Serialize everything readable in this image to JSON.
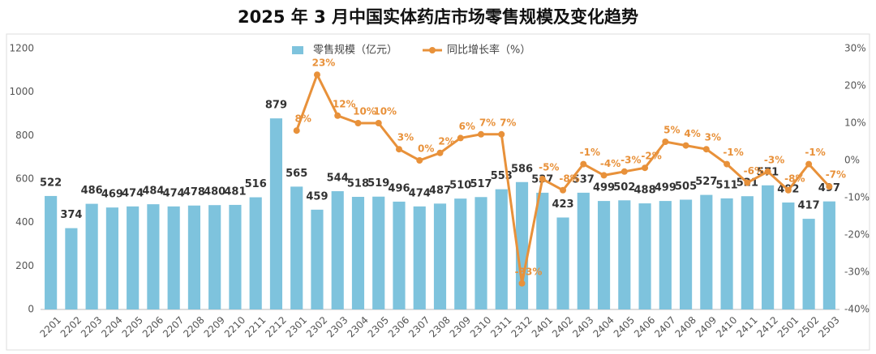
{
  "chart_data": {
    "type": "bar",
    "title": "2025 年 3 月中国实体药店市场零售规模及变化趋势",
    "categories": [
      "2201",
      "2202",
      "2203",
      "2204",
      "2205",
      "2206",
      "2207",
      "2208",
      "2209",
      "2210",
      "2211",
      "2212",
      "2301",
      "2302",
      "2303",
      "2304",
      "2305",
      "2306",
      "2307",
      "2308",
      "2309",
      "2310",
      "2311",
      "2312",
      "2401",
      "2402",
      "2403",
      "2404",
      "2405",
      "2406",
      "2407",
      "2408",
      "2409",
      "2410",
      "2411",
      "2412",
      "2501",
      "2502",
      "2503"
    ],
    "series": [
      {
        "name": "零售规模（亿元）",
        "type": "bar",
        "color": "#7ec3dd",
        "values": [
          522,
          374,
          486,
          469,
          474,
          484,
          474,
          478,
          480,
          481,
          516,
          879,
          565,
          459,
          544,
          518,
          519,
          496,
          474,
          487,
          510,
          517,
          553,
          586,
          537,
          423,
          537,
          499,
          502,
          488,
          499,
          505,
          527,
          511,
          521,
          571,
          492,
          417,
          497
        ]
      },
      {
        "name": "同比增长率（%）",
        "type": "line",
        "color": "#e8913a",
        "axis": "y2",
        "values": [
          null,
          null,
          null,
          null,
          null,
          null,
          null,
          null,
          null,
          null,
          null,
          null,
          8,
          23,
          12,
          10,
          10,
          3,
          0,
          2,
          6,
          7,
          7,
          -33,
          -5,
          -8,
          -1,
          -4,
          -3,
          -2,
          5,
          4,
          3,
          -1,
          -6,
          -3,
          -8,
          -1,
          -7
        ],
        "value_labels": [
          null,
          null,
          null,
          null,
          null,
          null,
          null,
          null,
          null,
          null,
          null,
          null,
          "8%",
          "23%",
          "12%",
          "10%",
          "10%",
          "3%",
          "0%",
          "2%",
          "6%",
          "7%",
          "7%",
          "-33%",
          "-5%",
          "-8%",
          "-1%",
          "-4%",
          "-3%",
          "-2%",
          "5%",
          "4%",
          "3%",
          "-1%",
          "-6%",
          "-3%",
          "-8%",
          "-1%",
          "-7%"
        ]
      }
    ],
    "ylim": [
      0,
      1200
    ],
    "yticks": [
      0,
      200,
      400,
      600,
      800,
      1000,
      1200
    ],
    "y2lim": [
      -40,
      30
    ],
    "y2ticks": [
      {
        "value": -40,
        "label": "-40%"
      },
      {
        "value": -30,
        "label": "-30%"
      },
      {
        "value": -20,
        "label": "-20%"
      },
      {
        "value": -10,
        "label": "-10%"
      },
      {
        "value": 0,
        "label": "0%"
      },
      {
        "value": 10,
        "label": "10%"
      },
      {
        "value": 20,
        "label": "20%"
      },
      {
        "value": 30,
        "label": "30%"
      }
    ],
    "legend": "top"
  }
}
